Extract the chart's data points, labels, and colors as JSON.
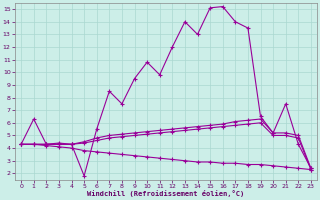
{
  "xlabel": "Windchill (Refroidissement éolien,°C)",
  "background_color": "#cceee8",
  "grid_color": "#aad8d0",
  "line_color": "#990099",
  "xlim": [
    -0.5,
    23.5
  ],
  "ylim": [
    1.5,
    15.5
  ],
  "xticks": [
    0,
    1,
    2,
    3,
    4,
    5,
    6,
    7,
    8,
    9,
    10,
    11,
    12,
    13,
    14,
    15,
    16,
    17,
    18,
    19,
    20,
    21,
    22,
    23
  ],
  "yticks": [
    2,
    3,
    4,
    5,
    6,
    7,
    8,
    9,
    10,
    11,
    12,
    13,
    14,
    15
  ],
  "series": [
    {
      "x": [
        0,
        1,
        2,
        3,
        4,
        5,
        6,
        7,
        8,
        9,
        10,
        11,
        12,
        13,
        14,
        15,
        16,
        17,
        18,
        19,
        20,
        21,
        22,
        23
      ],
      "y": [
        4.3,
        4.3,
        4.2,
        4.1,
        4.0,
        3.8,
        3.7,
        3.6,
        3.5,
        3.4,
        3.3,
        3.2,
        3.1,
        3.0,
        2.9,
        2.9,
        2.8,
        2.8,
        2.7,
        2.7,
        2.6,
        2.5,
        2.4,
        2.3
      ]
    },
    {
      "x": [
        0,
        1,
        2,
        3,
        4,
        5,
        6,
        7,
        8,
        9,
        10,
        11,
        12,
        13,
        14,
        15,
        16,
        17,
        18,
        19,
        20,
        21,
        22,
        23
      ],
      "y": [
        4.3,
        4.3,
        4.3,
        4.3,
        4.3,
        4.4,
        4.6,
        4.8,
        4.9,
        5.0,
        5.1,
        5.2,
        5.3,
        5.4,
        5.5,
        5.6,
        5.7,
        5.8,
        5.9,
        6.0,
        5.0,
        5.0,
        4.8,
        2.3
      ]
    },
    {
      "x": [
        0,
        1,
        2,
        3,
        4,
        5,
        6,
        7,
        8,
        9,
        10,
        11,
        12,
        13,
        14,
        15,
        16,
        17,
        18,
        19,
        20,
        21,
        22,
        23
      ],
      "y": [
        4.3,
        4.3,
        4.3,
        4.3,
        4.3,
        4.5,
        4.8,
        5.0,
        5.1,
        5.2,
        5.3,
        5.4,
        5.5,
        5.6,
        5.7,
        5.8,
        5.9,
        6.1,
        6.2,
        6.3,
        5.2,
        5.2,
        5.0,
        2.4
      ]
    },
    {
      "x": [
        0,
        1,
        2,
        3,
        4,
        5,
        6,
        7,
        8,
        9,
        10,
        11,
        12,
        13,
        14,
        15,
        16,
        17,
        18,
        19,
        20,
        21,
        22,
        23
      ],
      "y": [
        4.3,
        6.3,
        4.3,
        4.4,
        4.3,
        1.8,
        5.5,
        8.5,
        7.5,
        9.5,
        10.8,
        9.8,
        12.0,
        14.0,
        13.0,
        15.1,
        15.2,
        14.0,
        13.5,
        6.5,
        5.2,
        7.5,
        4.3,
        2.4
      ]
    }
  ]
}
